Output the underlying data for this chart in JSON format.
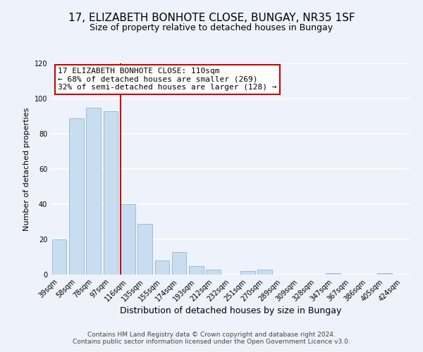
{
  "title": "17, ELIZABETH BONHOTE CLOSE, BUNGAY, NR35 1SF",
  "subtitle": "Size of property relative to detached houses in Bungay",
  "xlabel": "Distribution of detached houses by size in Bungay",
  "ylabel": "Number of detached properties",
  "categories": [
    "39sqm",
    "58sqm",
    "78sqm",
    "97sqm",
    "116sqm",
    "135sqm",
    "155sqm",
    "174sqm",
    "193sqm",
    "212sqm",
    "232sqm",
    "251sqm",
    "270sqm",
    "289sqm",
    "309sqm",
    "328sqm",
    "347sqm",
    "367sqm",
    "386sqm",
    "405sqm",
    "424sqm"
  ],
  "values": [
    20,
    89,
    95,
    93,
    40,
    29,
    8,
    13,
    5,
    3,
    0,
    2,
    3,
    0,
    0,
    0,
    1,
    0,
    0,
    1,
    0
  ],
  "bar_color": "#c8ddf0",
  "bar_edge_color": "#9bbdd8",
  "vline_color": "#cc0000",
  "vline_index": 4,
  "ylim": [
    0,
    120
  ],
  "yticks": [
    0,
    20,
    40,
    60,
    80,
    100,
    120
  ],
  "annotation_title": "17 ELIZABETH BONHOTE CLOSE: 110sqm",
  "annotation_line1": "← 68% of detached houses are smaller (269)",
  "annotation_line2": "32% of semi-detached houses are larger (128) →",
  "annotation_box_color": "#ffffff",
  "annotation_box_edgecolor": "#cc0000",
  "footer_line1": "Contains HM Land Registry data © Crown copyright and database right 2024.",
  "footer_line2": "Contains public sector information licensed under the Open Government Licence v3.0.",
  "background_color": "#eef2fb",
  "grid_color": "#ffffff",
  "title_fontsize": 11,
  "subtitle_fontsize": 9,
  "ylabel_fontsize": 8,
  "xlabel_fontsize": 9,
  "tick_fontsize": 7,
  "annotation_fontsize": 8,
  "footer_fontsize": 6.5
}
